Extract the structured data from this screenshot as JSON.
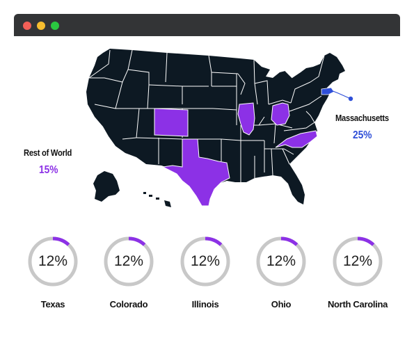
{
  "colors": {
    "titlebar": "#333436",
    "map_base": "#0d1923",
    "map_border": "#ffffff",
    "highlight": "#8c31e6",
    "massachusetts": "#2f4fd8",
    "ring_track": "#c8c8c8",
    "ring_fill": "#8c31e6",
    "dot_red": "#f25f57",
    "dot_yellow": "#f6bd2f",
    "dot_green": "#2ac840"
  },
  "callouts": {
    "massachusetts": {
      "label": "Massachusetts",
      "value": "25%"
    },
    "rest_of_world": {
      "label": "Rest of World",
      "value": "15%"
    }
  },
  "states": [
    {
      "label": "Texas",
      "percent_text": "12%",
      "fraction": 0.12
    },
    {
      "label": "Colorado",
      "percent_text": "12%",
      "fraction": 0.12
    },
    {
      "label": "Illinois",
      "percent_text": "12%",
      "fraction": 0.12
    },
    {
      "label": "Ohio",
      "percent_text": "12%",
      "fraction": 0.12
    },
    {
      "label": "North Carolina",
      "percent_text": "12%",
      "fraction": 0.12
    }
  ]
}
